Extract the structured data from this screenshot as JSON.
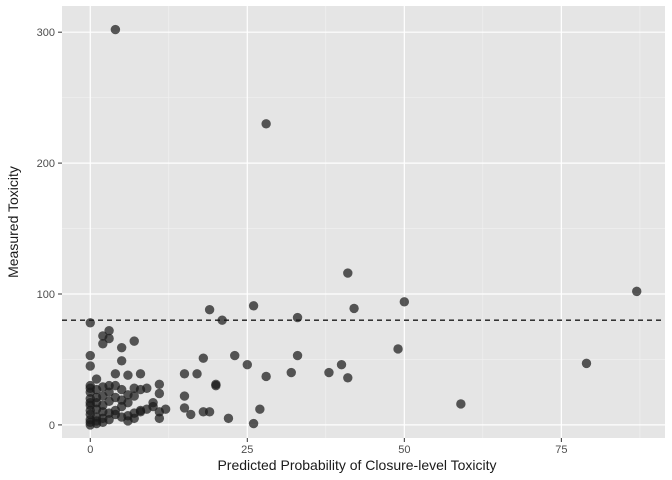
{
  "chart_data": {
    "type": "scatter",
    "title": "",
    "xlabel": "Predicted Probability of Closure-level Toxicity",
    "ylabel": "Measured Toxicity",
    "xlim": [
      -4.5,
      91.5
    ],
    "ylim": [
      -10,
      320
    ],
    "x_ticks": [
      0,
      25,
      50,
      75
    ],
    "x_tick_labels": [
      "0",
      "25",
      "50",
      "75"
    ],
    "y_ticks": [
      0,
      100,
      200,
      300
    ],
    "y_tick_labels": [
      "0",
      "100",
      "200",
      "300"
    ],
    "grid": true,
    "reference_line": {
      "y": 80,
      "style": "dashed"
    },
    "panel_color": "#e5e5e5",
    "point_color": "#1a1a1a",
    "points": [
      [
        4,
        302
      ],
      [
        28,
        230
      ],
      [
        41,
        116
      ],
      [
        87,
        102
      ],
      [
        50,
        94
      ],
      [
        42,
        89
      ],
      [
        26,
        91
      ],
      [
        19,
        88
      ],
      [
        33,
        82
      ],
      [
        21,
        80
      ],
      [
        0,
        78
      ],
      [
        3,
        72
      ],
      [
        2,
        68
      ],
      [
        3,
        66
      ],
      [
        2,
        62
      ],
      [
        7,
        64
      ],
      [
        5,
        59
      ],
      [
        18,
        51
      ],
      [
        23,
        53
      ],
      [
        33,
        53
      ],
      [
        49,
        58
      ],
      [
        79,
        47
      ],
      [
        40,
        46
      ],
      [
        25,
        46
      ],
      [
        0,
        53
      ],
      [
        0,
        45
      ],
      [
        5,
        49
      ],
      [
        4,
        39
      ],
      [
        6,
        38
      ],
      [
        8,
        39
      ],
      [
        15,
        39
      ],
      [
        17,
        39
      ],
      [
        28,
        37
      ],
      [
        32,
        40
      ],
      [
        38,
        40
      ],
      [
        41,
        36
      ],
      [
        20,
        31
      ],
      [
        20,
        30
      ],
      [
        11,
        31
      ],
      [
        18,
        10
      ],
      [
        15,
        22
      ],
      [
        10,
        17
      ],
      [
        11,
        24
      ],
      [
        7,
        28
      ],
      [
        6,
        23
      ],
      [
        9,
        28
      ],
      [
        4,
        30
      ],
      [
        1,
        35
      ],
      [
        0,
        30
      ],
      [
        0,
        28
      ],
      [
        1,
        27
      ],
      [
        2,
        29
      ],
      [
        3,
        30
      ],
      [
        0,
        25
      ],
      [
        2,
        22
      ],
      [
        4,
        21
      ],
      [
        6,
        17
      ],
      [
        7,
        22
      ],
      [
        8,
        27
      ],
      [
        1,
        17
      ],
      [
        3,
        18
      ],
      [
        5,
        14
      ],
      [
        0,
        20
      ],
      [
        0,
        15
      ],
      [
        1,
        12
      ],
      [
        2,
        10
      ],
      [
        3,
        9
      ],
      [
        4,
        11
      ],
      [
        0,
        11
      ],
      [
        0,
        8
      ],
      [
        1,
        6
      ],
      [
        2,
        5
      ],
      [
        0,
        4
      ],
      [
        1,
        3
      ],
      [
        2,
        2
      ],
      [
        0,
        2
      ],
      [
        1,
        1
      ],
      [
        0,
        0
      ],
      [
        5,
        6
      ],
      [
        6,
        7
      ],
      [
        7,
        9
      ],
      [
        8,
        10
      ],
      [
        9,
        12
      ],
      [
        10,
        14
      ],
      [
        11,
        10
      ],
      [
        12,
        12
      ],
      [
        6,
        3
      ],
      [
        7,
        5
      ],
      [
        8,
        11
      ],
      [
        4,
        8
      ],
      [
        3,
        4
      ],
      [
        2,
        15
      ],
      [
        5,
        19
      ],
      [
        0,
        17
      ],
      [
        1,
        21
      ],
      [
        11,
        5
      ],
      [
        15,
        13
      ],
      [
        16,
        8
      ],
      [
        19,
        10
      ],
      [
        22,
        5
      ],
      [
        26,
        1
      ],
      [
        27,
        12
      ],
      [
        59,
        16
      ],
      [
        5,
        27
      ],
      [
        3,
        25
      ]
    ]
  }
}
